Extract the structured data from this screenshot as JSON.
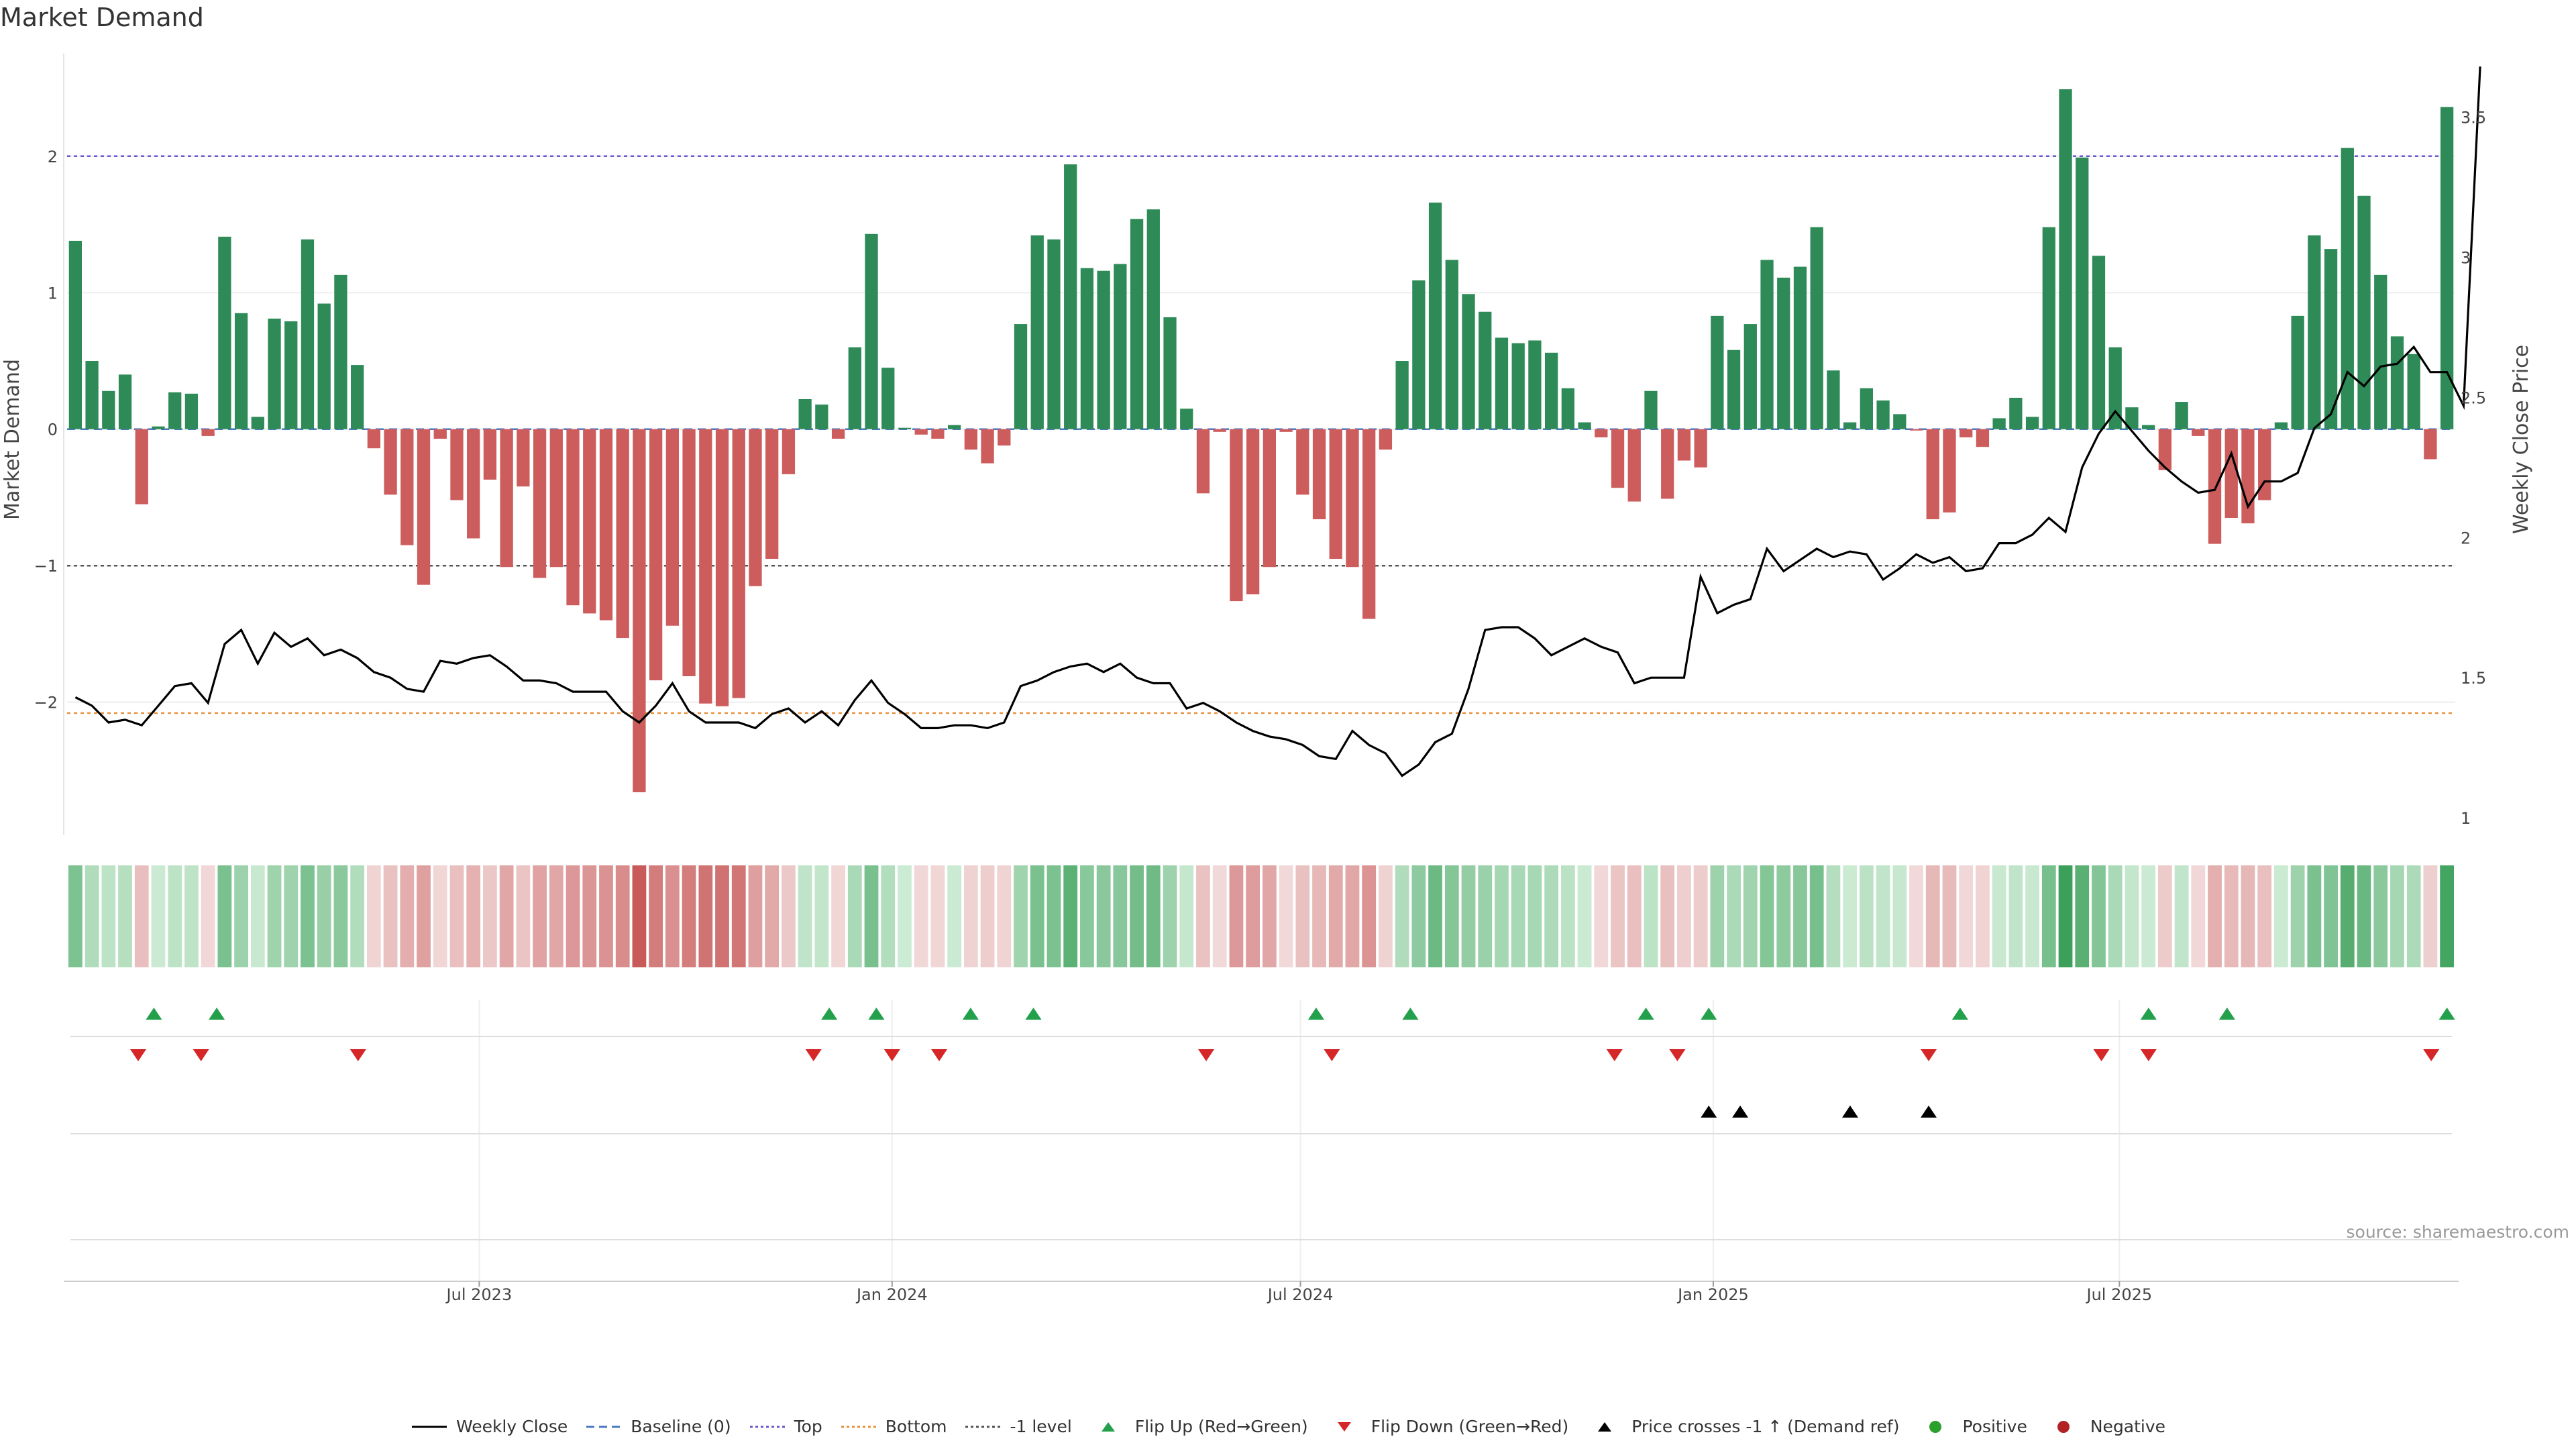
{
  "title": "Market Demand",
  "source": "source: sharemaestro.com",
  "colors": {
    "positive": "#2e8b57",
    "negative": "#cd5c5c",
    "top": "#6a5acd",
    "bottom": "#e8913d",
    "minus1": "#555555",
    "baseline": "#4a78c2",
    "price": "#000000",
    "flip_up": "#22a04b",
    "flip_down": "#d62728",
    "cross": "#000000",
    "positive_dot": "#2ca02c",
    "negative_dot": "#b22222"
  },
  "legend": [
    {
      "key": "weekly_close",
      "label": "Weekly Close",
      "symbol": "line-solid",
      "color": "#000000"
    },
    {
      "key": "baseline",
      "label": "Baseline (0)",
      "symbol": "line-dash",
      "color": "#4a78c2"
    },
    {
      "key": "top",
      "label": "Top",
      "symbol": "line-dot",
      "color": "#6a5acd"
    },
    {
      "key": "bottom",
      "label": "Bottom",
      "symbol": "line-dot",
      "color": "#e8913d"
    },
    {
      "key": "minus1",
      "label": "-1 level",
      "symbol": "line-dot",
      "color": "#555555"
    },
    {
      "key": "flip_up",
      "label": "Flip Up (Red→Green)",
      "symbol": "tri-up",
      "color": "#22a04b"
    },
    {
      "key": "flip_down",
      "label": "Flip Down (Green→Red)",
      "symbol": "tri-down",
      "color": "#d62728"
    },
    {
      "key": "cross",
      "label": "Price crosses -1 ↑ (Demand ref)",
      "symbol": "tri-up",
      "color": "#000000"
    },
    {
      "key": "positive",
      "label": "Positive",
      "symbol": "dot",
      "color": "#2ca02c"
    },
    {
      "key": "negative",
      "label": "Negative",
      "symbol": "dot",
      "color": "#b22222"
    }
  ],
  "chart_data": {
    "type": "bar+line",
    "title": "Market Demand",
    "ylabel": "Market Demand",
    "y2label": "Weekly Close Price",
    "ylim": [
      -2.95,
      2.8
    ],
    "y2lim": [
      0.95,
      3.75
    ],
    "yticks": [
      -2,
      -1,
      0,
      1,
      2
    ],
    "ytick_labels": [
      "−2",
      "−1",
      "0",
      "1",
      "2"
    ],
    "y2ticks": [
      1,
      1.5,
      2,
      2.5,
      3,
      3.5
    ],
    "y2tick_labels": [
      "1",
      "1.5",
      "2",
      "2.5",
      "3",
      "3.5"
    ],
    "reference_lines": {
      "baseline": 0,
      "top": 2.0,
      "bottom": -2.08,
      "minus1": -1.0
    },
    "x_start": "2023-01-02",
    "x_end": "2025-11-24",
    "xticks": [
      {
        "date": "2023-07-01",
        "label": "Jul 2023"
      },
      {
        "date": "2024-01-01",
        "label": "Jan 2024"
      },
      {
        "date": "2024-07-01",
        "label": "Jul 2024"
      },
      {
        "date": "2025-01-01",
        "label": "Jan 2025"
      },
      {
        "date": "2025-07-01",
        "label": "Jul 2025"
      }
    ],
    "demand": [
      1.38,
      0.5,
      0.28,
      0.4,
      -0.55,
      0.02,
      0.27,
      0.26,
      -0.05,
      1.41,
      0.85,
      0.09,
      0.81,
      0.79,
      1.39,
      0.92,
      1.13,
      0.47,
      -0.14,
      -0.48,
      -0.85,
      -1.14,
      -0.07,
      -0.52,
      -0.8,
      -0.37,
      -1.01,
      -0.42,
      -1.09,
      -1.01,
      -1.29,
      -1.35,
      -1.4,
      -1.53,
      -2.66,
      -1.84,
      -1.44,
      -1.81,
      -2.01,
      -2.03,
      -1.97,
      -1.15,
      -0.95,
      -0.33,
      0.22,
      0.18,
      -0.07,
      0.6,
      1.43,
      0.45,
      0.01,
      -0.04,
      -0.07,
      0.03,
      -0.15,
      -0.25,
      -0.12,
      0.77,
      1.42,
      1.39,
      1.94,
      1.18,
      1.16,
      1.21,
      1.54,
      1.61,
      0.82,
      0.15,
      -0.47,
      -0.02,
      -1.26,
      -1.21,
      -1.01,
      -0.02,
      -0.48,
      -0.66,
      -0.95,
      -1.01,
      -1.39,
      -0.15,
      0.5,
      1.09,
      1.66,
      1.24,
      0.99,
      0.86,
      0.67,
      0.63,
      0.65,
      0.56,
      0.3,
      0.05,
      -0.06,
      -0.43,
      -0.53,
      0.28,
      -0.51,
      -0.23,
      -0.28,
      0.83,
      0.58,
      0.77,
      1.24,
      1.11,
      1.19,
      1.48,
      0.43,
      0.05,
      0.3,
      0.21,
      0.11,
      -0.01,
      -0.66,
      -0.61,
      -0.06,
      -0.13,
      0.08,
      0.23,
      0.09,
      1.48,
      2.49,
      1.99,
      1.27,
      0.6,
      0.16,
      0.03,
      -0.3,
      0.2,
      -0.05,
      -0.84,
      -0.65,
      -0.69,
      -0.52,
      0.05,
      0.83,
      1.42,
      1.32,
      2.06,
      1.71,
      1.13,
      0.68,
      0.55,
      -0.22,
      2.36
    ],
    "weekly_close": [
      1.43,
      1.4,
      1.34,
      1.35,
      1.33,
      1.4,
      1.47,
      1.48,
      1.41,
      1.62,
      1.67,
      1.55,
      1.66,
      1.61,
      1.64,
      1.58,
      1.6,
      1.57,
      1.52,
      1.5,
      1.46,
      1.45,
      1.56,
      1.55,
      1.57,
      1.58,
      1.54,
      1.49,
      1.49,
      1.48,
      1.45,
      1.45,
      1.45,
      1.38,
      1.34,
      1.4,
      1.48,
      1.38,
      1.34,
      1.34,
      1.34,
      1.32,
      1.37,
      1.39,
      1.34,
      1.38,
      1.33,
      1.42,
      1.49,
      1.41,
      1.37,
      1.32,
      1.32,
      1.33,
      1.33,
      1.32,
      1.34,
      1.47,
      1.49,
      1.52,
      1.54,
      1.55,
      1.52,
      1.55,
      1.5,
      1.48,
      1.48,
      1.39,
      1.41,
      1.38,
      1.34,
      1.31,
      1.29,
      1.28,
      1.26,
      1.22,
      1.21,
      1.31,
      1.26,
      1.23,
      1.15,
      1.19,
      1.27,
      1.3,
      1.46,
      1.67,
      1.68,
      1.68,
      1.64,
      1.58,
      1.61,
      1.64,
      1.61,
      1.59,
      1.48,
      1.5,
      1.5,
      1.5,
      1.86,
      1.73,
      1.76,
      1.78,
      1.96,
      1.88,
      1.92,
      1.96,
      1.93,
      1.95,
      1.94,
      1.85,
      1.89,
      1.94,
      1.91,
      1.93,
      1.88,
      1.89,
      1.98,
      1.98,
      2.01,
      2.07,
      2.02,
      2.25,
      2.37,
      2.45,
      2.38,
      2.31,
      2.25,
      2.2,
      2.16,
      2.17,
      2.3,
      2.11,
      2.2,
      2.2,
      2.23,
      2.39,
      2.44,
      2.59,
      2.54,
      2.61,
      2.62,
      2.68,
      2.59,
      2.59,
      2.47,
      3.68
    ],
    "heat_dates": "weekly, aligned with demand bars",
    "flip_up_dates": [
      "2023-02-06",
      "2023-03-06",
      "2023-12-04",
      "2023-12-25",
      "2024-02-05",
      "2024-03-04",
      "2024-07-08",
      "2024-08-19",
      "2024-12-02",
      "2024-12-30",
      "2025-04-21",
      "2025-07-14",
      "2025-08-18",
      "2025-11-24"
    ],
    "flip_down_dates": [
      "2023-01-30",
      "2023-02-27",
      "2023-05-08",
      "2023-11-27",
      "2024-01-01",
      "2024-01-22",
      "2024-05-20",
      "2024-07-15",
      "2024-11-18",
      "2024-12-16",
      "2025-04-07",
      "2025-06-23",
      "2025-07-14",
      "2025-11-17"
    ],
    "cross_dates": [
      "2024-12-30",
      "2025-01-13",
      "2025-03-03",
      "2025-04-07"
    ]
  }
}
